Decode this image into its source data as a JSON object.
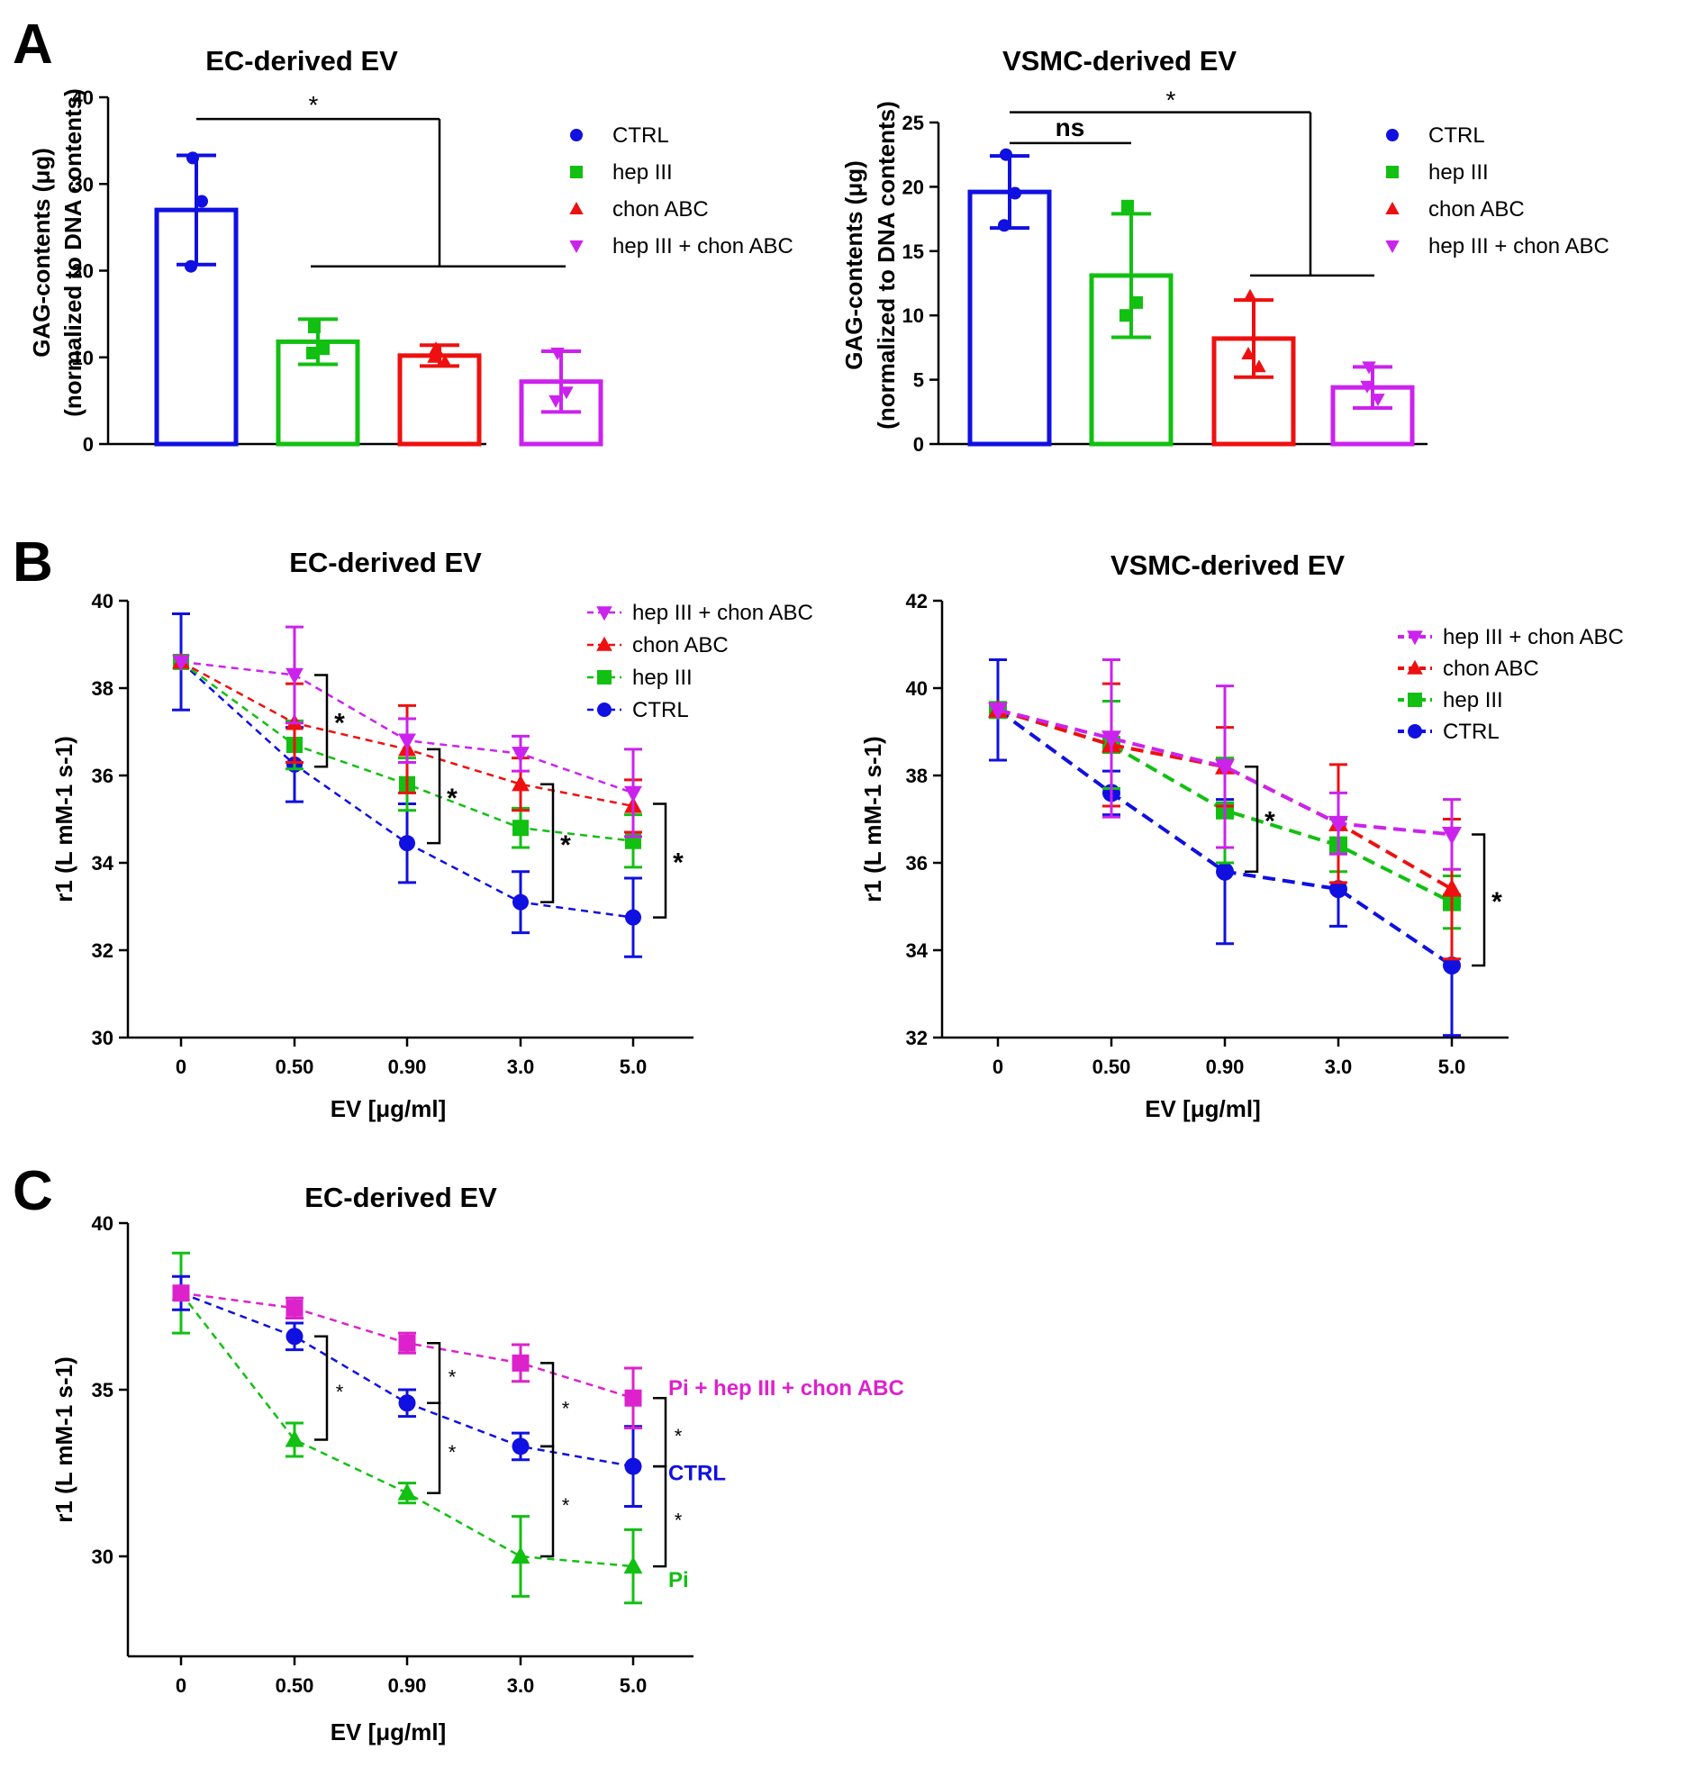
{
  "chart_data": [
    {
      "id": "A1",
      "panel": "A",
      "type": "bar",
      "title": "EC-derived EV",
      "ylabel": [
        "GAG-contents (μg)",
        "(normalized to DNA contents)"
      ],
      "xlabel": "",
      "ylim": [
        0,
        40
      ],
      "yticks": [
        0,
        10,
        20,
        30,
        40
      ],
      "categories": [
        "CTRL",
        "hep III",
        "chon ABC",
        "hep III + chon ABC"
      ],
      "values": [
        27,
        11.8,
        10.2,
        7.2
      ],
      "sd": [
        6.3,
        2.6,
        1.2,
        3.5
      ],
      "points": [
        [
          33,
          28,
          20.5
        ],
        [
          13.5,
          11,
          10.5
        ],
        [
          11,
          9.5,
          10
        ],
        [
          10.5,
          6,
          5
        ]
      ],
      "markers": [
        "circle",
        "square",
        "triangle",
        "triangle-down"
      ],
      "colors": [
        "#1010e0",
        "#12c012",
        "#ee1010",
        "#cc22ee"
      ],
      "legend": [
        "CTRL",
        "hep III",
        "chon ABC",
        "hep III + chon ABC"
      ],
      "significance": [
        {
          "label": "*",
          "from": [
            0
          ],
          "to": [
            1,
            3
          ]
        }
      ]
    },
    {
      "id": "A2",
      "panel": "",
      "type": "bar",
      "title": "VSMC-derived EV",
      "ylabel": [
        "GAG-contents (μg)",
        "(normalized to DNA contents)"
      ],
      "xlabel": "",
      "ylim": [
        0,
        25
      ],
      "yticks": [
        0,
        5,
        10,
        15,
        20,
        25
      ],
      "categories": [
        "CTRL",
        "hep III",
        "chon ABC",
        "hep III + chon ABC"
      ],
      "values": [
        19.6,
        13.1,
        8.2,
        4.4
      ],
      "sd": [
        2.8,
        4.8,
        3.0,
        1.6
      ],
      "points": [
        [
          22.5,
          19.5,
          17
        ],
        [
          18.5,
          11,
          10
        ],
        [
          11.5,
          6,
          7
        ],
        [
          6,
          3.5,
          4.5
        ]
      ],
      "markers": [
        "circle",
        "square",
        "triangle",
        "triangle-down"
      ],
      "colors": [
        "#1010e0",
        "#12c012",
        "#ee1010",
        "#cc22ee"
      ],
      "legend": [
        "CTRL",
        "hep III",
        "chon ABC",
        "hep III + chon ABC"
      ],
      "significance": [
        {
          "label": "ns",
          "from": [
            0
          ],
          "to": [
            1
          ]
        },
        {
          "label": "*",
          "from": [
            0
          ],
          "to": [
            2,
            3
          ]
        }
      ]
    },
    {
      "id": "B1",
      "panel": "B",
      "type": "line",
      "title": "EC-derived EV",
      "xlabel": "EV [μg/ml]",
      "ylabel": "r1 (L mM-1 s-1)",
      "ylim": [
        30,
        40
      ],
      "yticks": [
        30,
        32,
        34,
        36,
        38,
        40
      ],
      "x": [
        "0",
        "0.50",
        "0.90",
        "3.0",
        "5.0"
      ],
      "legend_order": [
        3,
        2,
        1,
        0
      ],
      "series": [
        {
          "name": "CTRL",
          "color": "#1010e0",
          "marker": "circle",
          "values": [
            38.6,
            36.25,
            34.45,
            33.1,
            32.75
          ],
          "err": [
            1.1,
            0.85,
            0.9,
            0.7,
            0.9
          ]
        },
        {
          "name": "hep III",
          "color": "#12c012",
          "marker": "square",
          "values": [
            38.6,
            36.7,
            35.8,
            34.8,
            34.5
          ],
          "err": [
            0,
            0.55,
            0.6,
            0.45,
            0.6
          ]
        },
        {
          "name": "chon ABC",
          "color": "#ee1010",
          "marker": "triangle",
          "values": [
            38.6,
            37.2,
            36.6,
            35.8,
            35.3
          ],
          "err": [
            0,
            0.9,
            1.0,
            0.6,
            0.6
          ]
        },
        {
          "name": "hep III + chon ABC",
          "color": "#cc22ee",
          "marker": "triangle-down",
          "values": [
            38.6,
            38.3,
            36.8,
            36.5,
            35.6
          ],
          "err": [
            0,
            1.1,
            0.5,
            0.4,
            1.0
          ]
        }
      ],
      "significance": [
        {
          "label": "*",
          "x_index": 1,
          "y_range": [
            36.2,
            38.3
          ]
        },
        {
          "label": "*",
          "x_index": 2,
          "y_range": [
            34.45,
            36.6
          ]
        },
        {
          "label": "*",
          "x_index": 3,
          "y_range": [
            33.1,
            35.8
          ]
        },
        {
          "label": "*",
          "x_index": 4,
          "y_range": [
            32.75,
            35.35
          ]
        }
      ]
    },
    {
      "id": "B2",
      "panel": "",
      "type": "line",
      "title": "VSMC-derived EV",
      "xlabel": "EV [μg/ml]",
      "ylabel": "r1 (L mM-1 s-1)",
      "ylim": [
        32,
        42
      ],
      "yticks": [
        32,
        34,
        36,
        38,
        40,
        42
      ],
      "x": [
        "0",
        "0.50",
        "0.90",
        "3.0",
        "5.0"
      ],
      "legend_order": [
        3,
        2,
        1,
        0
      ],
      "series": [
        {
          "name": "CTRL",
          "color": "#1010e0",
          "marker": "circle",
          "values": [
            39.5,
            37.6,
            35.8,
            35.4,
            33.65
          ],
          "err": [
            1.15,
            0.5,
            1.65,
            0.85,
            1.6
          ]
        },
        {
          "name": "hep III",
          "color": "#12c012",
          "marker": "square",
          "values": [
            39.5,
            38.7,
            37.2,
            36.4,
            35.1
          ],
          "err": [
            0,
            1.0,
            1.2,
            0.6,
            0.6
          ]
        },
        {
          "name": "chon ABC",
          "color": "#ee1010",
          "marker": "triangle",
          "values": [
            39.5,
            38.7,
            38.2,
            36.9,
            35.4
          ],
          "err": [
            0,
            1.4,
            0.9,
            1.35,
            1.6
          ]
        },
        {
          "name": "hep III + chon ABC",
          "color": "#cc22ee",
          "marker": "triangle-down",
          "values": [
            39.5,
            38.85,
            38.2,
            36.9,
            36.65
          ],
          "err": [
            0,
            1.8,
            1.85,
            0.7,
            0.8
          ]
        }
      ],
      "significance": [
        {
          "label": "*",
          "x_index": 2,
          "y_range": [
            35.8,
            38.2
          ]
        },
        {
          "label": "*",
          "x_index": 4,
          "y_range": [
            33.65,
            36.65
          ]
        }
      ]
    },
    {
      "id": "C1",
      "panel": "C",
      "type": "line",
      "title": "EC-derived EV",
      "xlabel": "EV [μg/ml]",
      "ylabel": "r1 (L mM-1 s-1)",
      "ylim": [
        27,
        40
      ],
      "yticks": [
        30,
        35,
        40
      ],
      "x": [
        "0",
        "0.50",
        "0.90",
        "3.0",
        "5.0"
      ],
      "series": [
        {
          "name": "Pi + hep III + chon ABC",
          "color": "#dd22cc",
          "marker": "square",
          "values": [
            37.9,
            37.45,
            36.4,
            35.8,
            34.75
          ],
          "err": [
            0,
            0.3,
            0.3,
            0.55,
            0.9
          ],
          "label_dy": 0.3
        },
        {
          "name": "CTRL",
          "color": "#1010e0",
          "marker": "circle",
          "values": [
            37.9,
            36.6,
            34.6,
            33.3,
            32.7
          ],
          "err": [
            0.5,
            0.4,
            0.4,
            0.4,
            1.2
          ],
          "label_dy": -0.2
        },
        {
          "name": "Pi",
          "color": "#12c012",
          "marker": "triangle",
          "values": [
            37.9,
            33.5,
            31.9,
            30.0,
            29.7
          ],
          "err": [
            1.2,
            0.5,
            0.3,
            1.2,
            1.1
          ],
          "label_dy": -0.4
        }
      ],
      "significance": [
        {
          "label": "*",
          "x_index": 1,
          "y_range": [
            33.5,
            36.6
          ]
        },
        {
          "label": "*",
          "x_index": 2,
          "y_range": [
            34.6,
            36.4
          ]
        },
        {
          "label": "*",
          "x_index": 2,
          "y_range": [
            31.9,
            34.6
          ]
        },
        {
          "label": "*",
          "x_index": 3,
          "y_range": [
            33.3,
            35.8
          ]
        },
        {
          "label": "*",
          "x_index": 3,
          "y_range": [
            30.0,
            33.3
          ]
        },
        {
          "label": "*",
          "x_index": 4,
          "y_range": [
            32.7,
            34.75
          ]
        },
        {
          "label": "*",
          "x_index": 4,
          "y_range": [
            29.7,
            32.7
          ]
        }
      ]
    }
  ]
}
